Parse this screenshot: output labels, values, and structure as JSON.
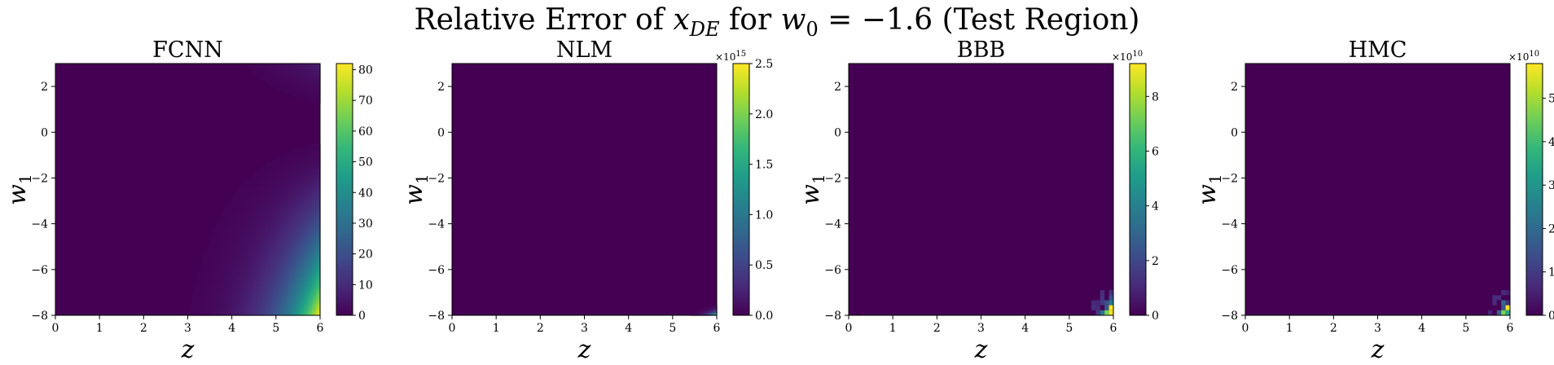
{
  "figure": {
    "suptitle": "Relative Error of x_DE for w_0 = −1.6 (Test Region)",
    "suptitle_parts": {
      "pre": "Relative Error of ",
      "var": "x",
      "var_sub": "DE",
      "mid": " for ",
      "w": "w",
      "w_sub": "0",
      "post": " = −1.6 (Test Region)"
    }
  },
  "colormap": "viridis",
  "colormap_stops": [
    "#440154",
    "#482878",
    "#3e4989",
    "#31688e",
    "#26828e",
    "#1f9e89",
    "#35b779",
    "#6ece58",
    "#b5de2b",
    "#fde725"
  ],
  "chart_data": [
    {
      "type": "heatmap",
      "title": "FCNN",
      "xlabel": "z",
      "ylabel": "w",
      "ylabel_sub": "1",
      "xlim": [
        0,
        6
      ],
      "ylim": [
        -8,
        3
      ],
      "xticks": [
        "0",
        "1",
        "2",
        "3",
        "4",
        "5",
        "6"
      ],
      "yticks": [
        "2",
        "0",
        "−2",
        "−4",
        "−6",
        "−8"
      ],
      "colorbar": {
        "min": 0,
        "max": 82,
        "ticks": [
          "0",
          "10",
          "20",
          "30",
          "40",
          "50",
          "60",
          "70",
          "80"
        ],
        "multiplier": ""
      },
      "pattern": "smooth",
      "description_values": {
        "max_at": [
          6,
          -8
        ],
        "value_max": 82
      }
    },
    {
      "type": "heatmap",
      "title": "NLM",
      "xlabel": "z",
      "ylabel": "w",
      "ylabel_sub": "1",
      "xlim": [
        0,
        6
      ],
      "ylim": [
        -8,
        3
      ],
      "xticks": [
        "0",
        "1",
        "2",
        "3",
        "4",
        "5",
        "6"
      ],
      "yticks": [
        "2",
        "0",
        "−2",
        "−4",
        "−6",
        "−8"
      ],
      "colorbar": {
        "min": 0,
        "max": 2.5,
        "ticks": [
          "0.0",
          "0.5",
          "1.0",
          "1.5",
          "2.0",
          "2.5"
        ],
        "multiplier": "×10",
        "multiplier_exp": "15"
      },
      "pattern": "corner",
      "description_values": {
        "max_at": [
          6,
          -8
        ],
        "value_max": 2.5
      }
    },
    {
      "type": "heatmap",
      "title": "BBB",
      "xlabel": "z",
      "ylabel": "w",
      "ylabel_sub": "1",
      "xlim": [
        0,
        6
      ],
      "ylim": [
        -8,
        3
      ],
      "xticks": [
        "0",
        "1",
        "2",
        "3",
        "4",
        "5",
        "6"
      ],
      "yticks": [
        "2",
        "0",
        "−2",
        "−4",
        "−6",
        "−8"
      ],
      "colorbar": {
        "min": 0,
        "max": 9.2,
        "ticks": [
          "0",
          "2",
          "4",
          "6",
          "8"
        ],
        "multiplier": "×10",
        "multiplier_exp": "10"
      },
      "pattern": "pixels",
      "description_values": {
        "max_at": [
          6,
          -8
        ],
        "value_max": 9.2
      }
    },
    {
      "type": "heatmap",
      "title": "HMC",
      "xlabel": "z",
      "ylabel": "w",
      "ylabel_sub": "1",
      "xlim": [
        0,
        6
      ],
      "ylim": [
        -8,
        3
      ],
      "xticks": [
        "0",
        "1",
        "2",
        "3",
        "4",
        "5",
        "6"
      ],
      "yticks": [
        "2",
        "0",
        "−2",
        "−4",
        "−6",
        "−8"
      ],
      "colorbar": {
        "min": 0,
        "max": 5.8,
        "ticks": [
          "0",
          "1",
          "2",
          "3",
          "4",
          "5"
        ],
        "multiplier": "×10",
        "multiplier_exp": "10"
      },
      "pattern": "pixels",
      "description_values": {
        "max_at": [
          6,
          -8
        ],
        "value_max": 5.8
      }
    }
  ]
}
